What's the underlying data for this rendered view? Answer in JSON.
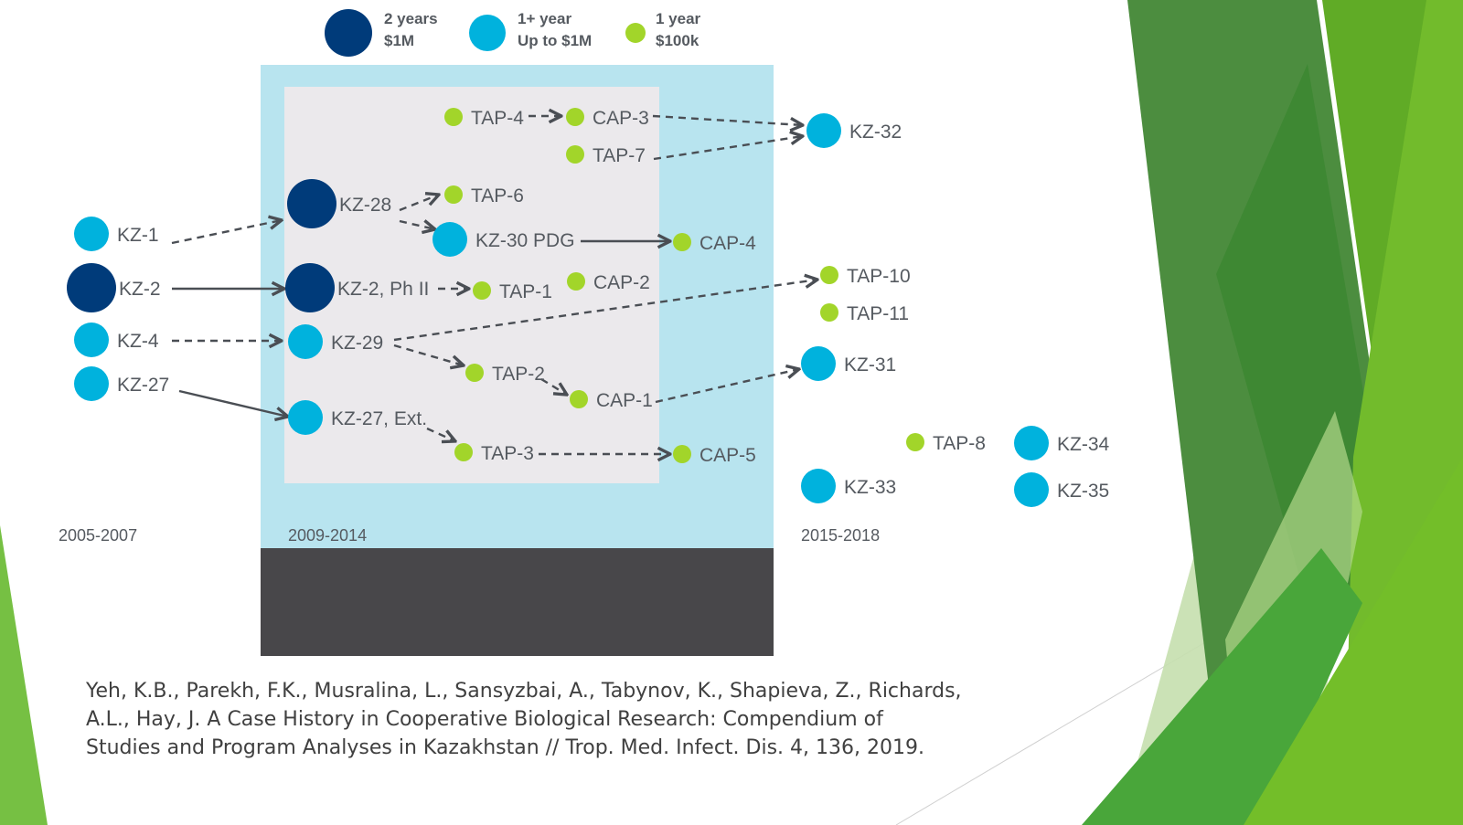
{
  "colors": {
    "dark_blue": "#003b7a",
    "light_blue": "#00b2dd",
    "lime": "#a2d52a",
    "era_box": "#b8e4ef",
    "inner_box": "#ebe9ec",
    "dark_block": "#48474a",
    "line": "#4a4e54",
    "text": "#555a60"
  },
  "legend": [
    {
      "size": "large",
      "color_key": "dark_blue",
      "line1": "2 years",
      "line2": "$1M"
    },
    {
      "size": "medium",
      "color_key": "light_blue",
      "line1": "1+ year",
      "line2": "Up to $1M"
    },
    {
      "size": "small",
      "color_key": "lime",
      "line1": "1 year",
      "line2": "$100k"
    }
  ],
  "eras": [
    {
      "id": "era1",
      "label": "2005-2007"
    },
    {
      "id": "era2",
      "label": "2009-2014"
    },
    {
      "id": "era3",
      "label": "2015-2018"
    }
  ],
  "nodes": [
    {
      "id": "KZ-1",
      "label": "KZ-1",
      "size": "medium",
      "era": "2005-2007"
    },
    {
      "id": "KZ-2",
      "label": "KZ-2",
      "size": "large",
      "era": "2005-2007"
    },
    {
      "id": "KZ-4",
      "label": "KZ-4",
      "size": "medium",
      "era": "2005-2007"
    },
    {
      "id": "KZ-27",
      "label": "KZ-27",
      "size": "medium",
      "era": "2005-2007"
    },
    {
      "id": "KZ-28",
      "label": "KZ-28",
      "size": "large",
      "era": "2009-2014"
    },
    {
      "id": "KZ-2-PhII",
      "label": "KZ-2, Ph II",
      "size": "large",
      "era": "2009-2014"
    },
    {
      "id": "KZ-29",
      "label": "KZ-29",
      "size": "medium",
      "era": "2009-2014"
    },
    {
      "id": "KZ-27-Ext",
      "label": "KZ-27, Ext.",
      "size": "medium",
      "era": "2009-2014"
    },
    {
      "id": "KZ-30",
      "label": "KZ-30 PDG",
      "size": "medium",
      "era": "2009-2014"
    },
    {
      "id": "TAP-4",
      "label": "TAP-4",
      "size": "small",
      "era": "2009-2014"
    },
    {
      "id": "CAP-3",
      "label": "CAP-3",
      "size": "small",
      "era": "2009-2014"
    },
    {
      "id": "TAP-7",
      "label": "TAP-7",
      "size": "small",
      "era": "2009-2014"
    },
    {
      "id": "TAP-6",
      "label": "TAP-6",
      "size": "small",
      "era": "2009-2014"
    },
    {
      "id": "TAP-1",
      "label": "TAP-1",
      "size": "small",
      "era": "2009-2014"
    },
    {
      "id": "CAP-2",
      "label": "CAP-2",
      "size": "small",
      "era": "2009-2014"
    },
    {
      "id": "TAP-2",
      "label": "TAP-2",
      "size": "small",
      "era": "2009-2014"
    },
    {
      "id": "CAP-1",
      "label": "CAP-1",
      "size": "small",
      "era": "2009-2014"
    },
    {
      "id": "TAP-3",
      "label": "TAP-3",
      "size": "small",
      "era": "2009-2014"
    },
    {
      "id": "CAP-4",
      "label": "CAP-4",
      "size": "small",
      "era": "2009-2014"
    },
    {
      "id": "CAP-5",
      "label": "CAP-5",
      "size": "small",
      "era": "2009-2014"
    },
    {
      "id": "KZ-32",
      "label": "KZ-32",
      "size": "medium",
      "era": "2015-2018"
    },
    {
      "id": "TAP-10",
      "label": "TAP-10",
      "size": "small",
      "era": "2015-2018"
    },
    {
      "id": "TAP-11",
      "label": "TAP-11",
      "size": "small",
      "era": "2015-2018"
    },
    {
      "id": "KZ-31",
      "label": "KZ-31",
      "size": "medium",
      "era": "2015-2018"
    },
    {
      "id": "TAP-8",
      "label": "TAP-8",
      "size": "small",
      "era": "2015-2018"
    },
    {
      "id": "KZ-34",
      "label": "KZ-34",
      "size": "medium",
      "era": "2015-2018"
    },
    {
      "id": "KZ-33",
      "label": "KZ-33",
      "size": "medium",
      "era": "2015-2018"
    },
    {
      "id": "KZ-35",
      "label": "KZ-35",
      "size": "medium",
      "era": "2015-2018"
    }
  ],
  "edges": [
    {
      "from": "KZ-1",
      "to": "KZ-28",
      "style": "dashed"
    },
    {
      "from": "KZ-2",
      "to": "KZ-2-PhII",
      "style": "solid"
    },
    {
      "from": "KZ-4",
      "to": "KZ-29",
      "style": "dashed"
    },
    {
      "from": "KZ-27",
      "to": "KZ-27-Ext",
      "style": "solid"
    },
    {
      "from": "KZ-28",
      "to": "TAP-6",
      "style": "dashed"
    },
    {
      "from": "KZ-28",
      "to": "KZ-30",
      "style": "dashed"
    },
    {
      "from": "KZ-30",
      "to": "CAP-4",
      "style": "solid"
    },
    {
      "from": "TAP-4",
      "to": "CAP-3",
      "style": "dashed"
    },
    {
      "from": "CAP-3",
      "to": "KZ-32",
      "style": "dashed"
    },
    {
      "from": "TAP-7",
      "to": "KZ-32",
      "style": "dashed"
    },
    {
      "from": "KZ-2-PhII",
      "to": "TAP-1",
      "style": "dashed"
    },
    {
      "from": "KZ-29",
      "to": "TAP-10",
      "style": "dashed"
    },
    {
      "from": "KZ-29",
      "to": "TAP-2",
      "style": "dashed"
    },
    {
      "from": "TAP-2",
      "to": "CAP-1",
      "style": "dashed"
    },
    {
      "from": "CAP-1",
      "to": "KZ-31",
      "style": "dashed"
    },
    {
      "from": "KZ-27-Ext",
      "to": "TAP-3",
      "style": "dashed"
    },
    {
      "from": "TAP-3",
      "to": "CAP-5",
      "style": "dashed"
    }
  ],
  "citation": {
    "lines": [
      "Yeh, K.B., Parekh, F.K., Musralina, L., Sansyzbai, A., Tabynov, K., Shapieva, Z., Richards,",
      "A.L., Hay, J. A Case History in Cooperative Biological Research: Compendium of",
      "Studies and Program Analyses in Kazakhstan // Trop. Med. Infect. Dis. 4, 136, 2019."
    ]
  }
}
